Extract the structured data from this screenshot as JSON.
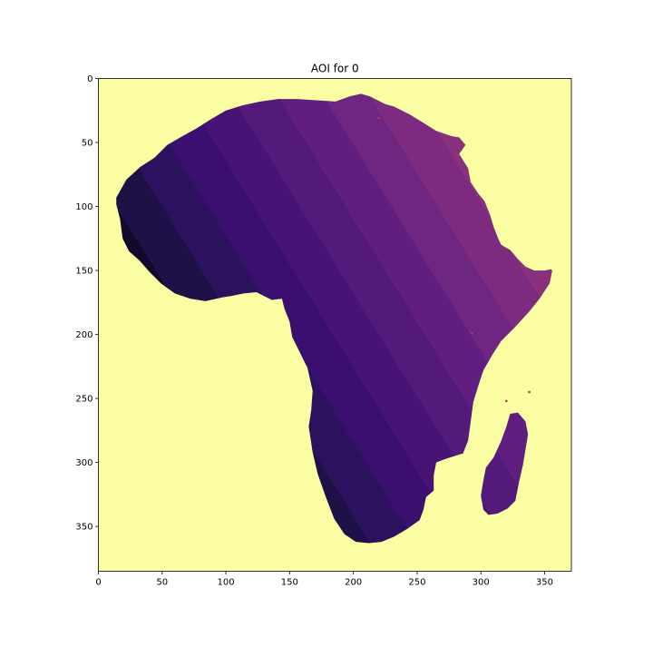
{
  "chart_data": {
    "type": "heatmap",
    "title": "AOI for 0",
    "xlabel": "",
    "ylabel": "",
    "xlim": [
      0,
      371
    ],
    "ylim": [
      385,
      0
    ],
    "x_ticks": [
      0,
      50,
      100,
      150,
      200,
      250,
      300,
      350
    ],
    "y_ticks": [
      0,
      50,
      100,
      150,
      200,
      250,
      300,
      350
    ],
    "grid": false,
    "colormap": "magma",
    "background_color": "#fbfda2",
    "band_colors": [
      "#050416",
      "#100b2d",
      "#1d1147",
      "#2c115f",
      "#3a0f6f",
      "#471476",
      "#541a7b",
      "#601f80",
      "#6e2680",
      "#7c2b80",
      "#8a317d",
      "#993678",
      "#a83c71",
      "#b73e69"
    ],
    "regions": {
      "mainland_outline": [
        [
          14,
          93
        ],
        [
          22,
          79
        ],
        [
          33,
          69
        ],
        [
          44,
          62
        ],
        [
          54,
          52
        ],
        [
          66,
          45
        ],
        [
          77,
          39
        ],
        [
          88,
          32
        ],
        [
          100,
          25
        ],
        [
          113,
          21
        ],
        [
          127,
          18
        ],
        [
          141,
          16
        ],
        [
          156,
          16
        ],
        [
          171,
          17
        ],
        [
          186,
          18
        ],
        [
          197,
          14
        ],
        [
          206,
          12
        ],
        [
          213,
          14
        ],
        [
          225,
          20
        ],
        [
          232,
          22
        ],
        [
          244,
          28
        ],
        [
          254,
          34
        ],
        [
          265,
          41
        ],
        [
          277,
          45
        ],
        [
          283,
          46
        ],
        [
          288,
          52
        ],
        [
          283,
          59
        ],
        [
          290,
          70
        ],
        [
          292,
          81
        ],
        [
          298,
          90
        ],
        [
          303,
          96
        ],
        [
          307,
          106
        ],
        [
          310,
          116
        ],
        [
          314,
          126
        ],
        [
          316,
          130
        ],
        [
          323,
          134
        ],
        [
          329,
          141
        ],
        [
          335,
          147
        ],
        [
          342,
          150
        ],
        [
          350,
          150
        ],
        [
          355,
          149
        ],
        [
          356,
          150
        ],
        [
          354,
          160
        ],
        [
          346,
          172
        ],
        [
          338,
          182
        ],
        [
          327,
          194
        ],
        [
          316,
          205
        ],
        [
          309,
          216
        ],
        [
          302,
          228
        ],
        [
          298,
          240
        ],
        [
          294,
          253
        ],
        [
          292,
          268
        ],
        [
          290,
          283
        ],
        [
          286,
          293
        ],
        [
          273,
          297
        ],
        [
          265,
          300
        ],
        [
          263,
          310
        ],
        [
          263,
          322
        ],
        [
          257,
          327
        ],
        [
          255,
          337
        ],
        [
          252,
          345
        ],
        [
          242,
          352
        ],
        [
          232,
          358
        ],
        [
          222,
          362
        ],
        [
          212,
          363
        ],
        [
          202,
          362
        ],
        [
          193,
          356
        ],
        [
          185,
          344
        ],
        [
          178,
          326
        ],
        [
          172,
          309
        ],
        [
          168,
          292
        ],
        [
          165,
          272
        ],
        [
          167,
          259
        ],
        [
          168,
          244
        ],
        [
          164,
          226
        ],
        [
          157,
          212
        ],
        [
          152,
          202
        ],
        [
          150,
          190
        ],
        [
          146,
          180
        ],
        [
          144,
          172
        ],
        [
          136,
          173
        ],
        [
          124,
          167
        ],
        [
          114,
          168
        ],
        [
          104,
          170
        ],
        [
          97,
          171
        ],
        [
          84,
          174
        ],
        [
          72,
          172
        ],
        [
          60,
          168
        ],
        [
          49,
          160
        ],
        [
          40,
          151
        ],
        [
          32,
          142
        ],
        [
          24,
          135
        ],
        [
          19,
          125
        ],
        [
          17,
          110
        ],
        [
          14,
          98
        ]
      ],
      "madagascar_outline": [
        [
          323,
          262
        ],
        [
          329,
          261
        ],
        [
          335,
          268
        ],
        [
          337,
          278
        ],
        [
          335,
          290
        ],
        [
          333,
          302
        ],
        [
          330,
          315
        ],
        [
          327,
          330
        ],
        [
          321,
          336
        ],
        [
          313,
          340
        ],
        [
          306,
          341
        ],
        [
          302,
          337
        ],
        [
          300,
          326
        ],
        [
          302,
          314
        ],
        [
          304,
          304
        ],
        [
          310,
          296
        ],
        [
          316,
          283
        ],
        [
          320,
          272
        ]
      ],
      "specks": [
        [
          293,
          199
        ],
        [
          320,
          252
        ],
        [
          338,
          245
        ],
        [
          220,
          31
        ]
      ]
    }
  }
}
